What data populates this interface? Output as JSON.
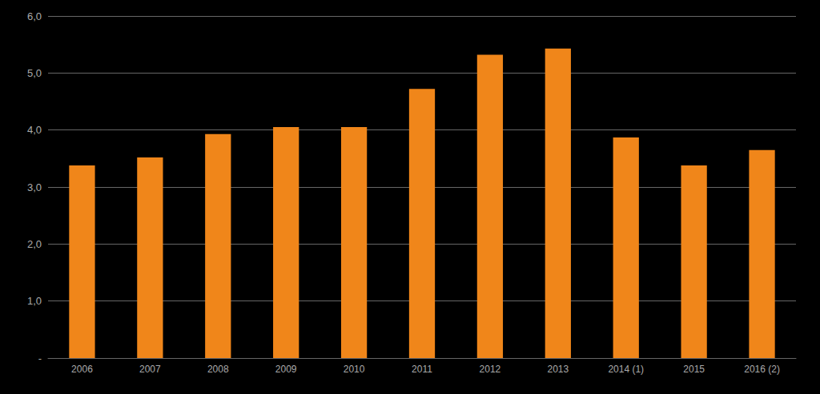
{
  "chart_data": {
    "type": "bar",
    "categories": [
      "2006",
      "2007",
      "2008",
      "2009",
      "2010",
      "2011",
      "2012",
      "2013",
      "2014 (1)",
      "2015",
      "2016 (2)"
    ],
    "values": [
      3.38,
      3.52,
      3.93,
      4.05,
      4.05,
      4.72,
      5.32,
      5.43,
      3.87,
      3.38,
      3.65
    ],
    "color": "#F0861A",
    "ylim": [
      0,
      6.0
    ],
    "yticks": [
      {
        "value": 0,
        "label": "-"
      },
      {
        "value": 1.0,
        "label": "1,0"
      },
      {
        "value": 2.0,
        "label": "2,0"
      },
      {
        "value": 3.0,
        "label": "3,0"
      },
      {
        "value": 4.0,
        "label": "4,0"
      },
      {
        "value": 5.0,
        "label": "5,0"
      },
      {
        "value": 6.0,
        "label": "6,0"
      }
    ],
    "grid": true
  }
}
